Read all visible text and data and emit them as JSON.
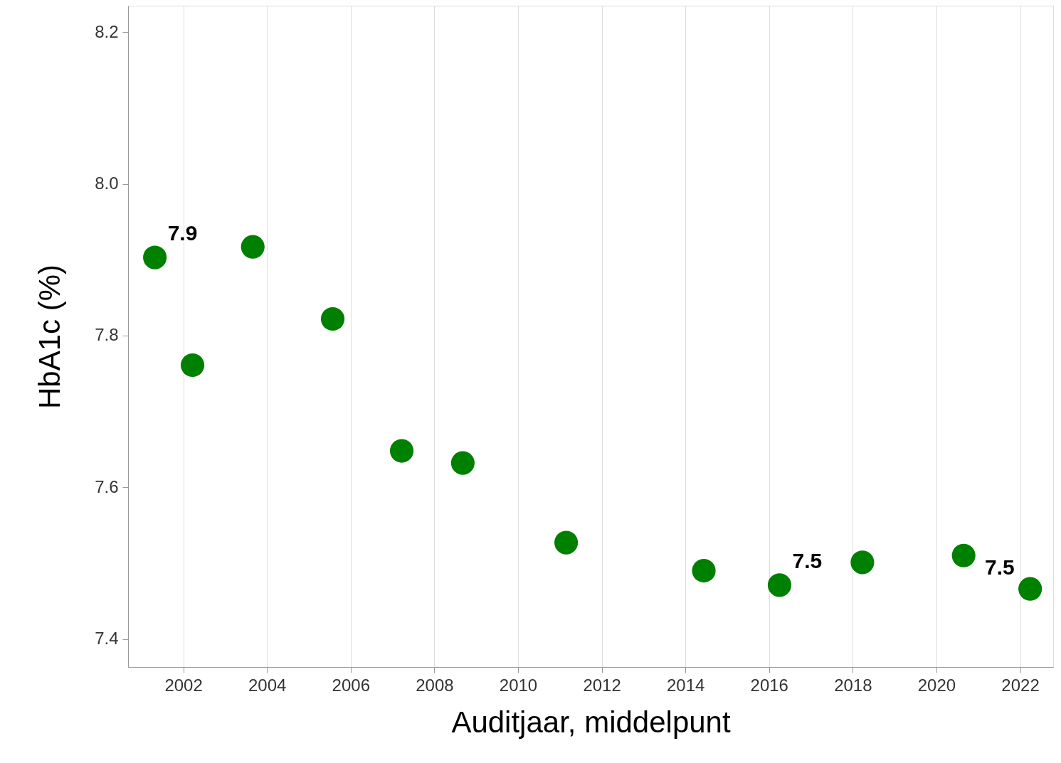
{
  "chart_data": {
    "type": "scatter",
    "xlabel": "Auditjaar, middelpunt",
    "ylabel": "HbA1c (%)",
    "x": [
      2001.32,
      2002.22,
      2003.66,
      2005.57,
      2007.22,
      2008.68,
      2011.15,
      2014.44,
      2016.25,
      2018.23,
      2020.65,
      2022.24
    ],
    "series": [
      {
        "color": "#008000",
        "values": [
          7.903,
          7.761,
          7.917,
          7.822,
          7.648,
          7.632,
          7.527,
          7.49,
          7.471,
          7.501,
          7.51,
          7.466
        ]
      }
    ],
    "xlim": [
      2000.68,
      2022.79
    ],
    "ylim": [
      7.363,
      8.235
    ],
    "xticks": [
      2002,
      2004,
      2006,
      2008,
      2010,
      2012,
      2014,
      2016,
      2018,
      2020,
      2022
    ],
    "yticks": [
      {
        "value": 7.4,
        "label": "7.4"
      },
      {
        "value": 7.6,
        "label": "7.6"
      },
      {
        "value": 7.8,
        "label": "7.8"
      },
      {
        "value": 8.0,
        "label": "8.0"
      },
      {
        "value": 8.2,
        "label": "8.2"
      }
    ],
    "grid": "x",
    "marker": "circle",
    "annotations": [
      {
        "text": "7.9",
        "x": 2001.32,
        "y": 7.903
      },
      {
        "text": "7.5",
        "x": 2016.25,
        "y": 7.471
      },
      {
        "text": "7.5",
        "x": 2022.24,
        "y": 7.466
      }
    ]
  }
}
